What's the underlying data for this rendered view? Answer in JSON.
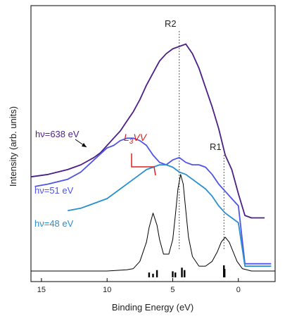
{
  "chart_data": {
    "type": "line",
    "title": "",
    "xlabel": "Binding Energy (eV)",
    "ylabel": "Intensity (arb. units)",
    "x_reversed": true,
    "xlim": [
      15.8,
      -2.8
    ],
    "ylim": [
      0,
      1
    ],
    "xticks": [
      15,
      10,
      5,
      0
    ],
    "yticks_shown": false,
    "grid": false,
    "series": [
      {
        "name": "hν=638 eV",
        "color": "#4b1f86",
        "x": [
          15.8,
          14.5,
          13.0,
          12.0,
          11.0,
          10.5,
          10.0,
          9.5,
          9.0,
          8.5,
          8.0,
          7.5,
          7.0,
          6.5,
          6.0,
          5.5,
          5.0,
          4.5,
          4.0,
          3.5,
          3.0,
          2.5,
          2.0,
          1.5,
          1.0,
          0.5,
          0.0,
          -0.5,
          -1.0,
          -1.5,
          -2.0
        ],
        "y": [
          0.39,
          0.4,
          0.42,
          0.44,
          0.47,
          0.49,
          0.52,
          0.55,
          0.58,
          0.62,
          0.66,
          0.71,
          0.77,
          0.82,
          0.87,
          0.9,
          0.92,
          0.93,
          0.94,
          0.9,
          0.84,
          0.76,
          0.68,
          0.59,
          0.48,
          0.42,
          0.32,
          0.23,
          0.22,
          0.22,
          0.22
        ]
      },
      {
        "name": "hν=51 eV",
        "color": "#4f55e6",
        "x": [
          15.5,
          14.5,
          13.0,
          12.0,
          11.0,
          10.0,
          9.5,
          9.0,
          8.5,
          8.0,
          7.5,
          7.0,
          6.5,
          6.0,
          5.5,
          5.0,
          4.5,
          4.0,
          3.5,
          3.0,
          2.5,
          2.0,
          1.5,
          1.0,
          0.5,
          0.0,
          -0.5,
          -1.0,
          -1.5,
          -2.0,
          -2.5
        ],
        "y": [
          0.35,
          0.36,
          0.38,
          0.41,
          0.46,
          0.51,
          0.52,
          0.54,
          0.55,
          0.55,
          0.54,
          0.52,
          0.48,
          0.45,
          0.44,
          0.46,
          0.47,
          0.45,
          0.44,
          0.44,
          0.43,
          0.4,
          0.36,
          0.33,
          0.3,
          0.27,
          0.03,
          0.03,
          0.03,
          0.03,
          0.03
        ]
      },
      {
        "name": "hν=48 eV",
        "color": "#2a8fd0",
        "x": [
          13.0,
          12.0,
          11.0,
          10.0,
          9.0,
          8.0,
          7.5,
          7.0,
          6.5,
          6.0,
          5.5,
          5.0,
          4.5,
          4.0,
          3.5,
          3.0,
          2.5,
          2.0,
          1.5,
          1.0,
          0.5,
          0.0,
          -0.5,
          -1.0,
          -1.5,
          -2.0,
          -2.5
        ],
        "y": [
          0.25,
          0.26,
          0.28,
          0.3,
          0.34,
          0.38,
          0.4,
          0.42,
          0.43,
          0.44,
          0.44,
          0.43,
          0.41,
          0.4,
          0.38,
          0.36,
          0.34,
          0.31,
          0.27,
          0.24,
          0.22,
          0.2,
          0.02,
          0.02,
          0.02,
          0.02,
          0.02
        ]
      },
      {
        "name": "",
        "color": "#000000",
        "x": [
          15.8,
          13.0,
          10.0,
          8.5,
          8.0,
          7.5,
          7.0,
          6.8,
          6.5,
          6.2,
          6.0,
          5.7,
          5.3,
          5.0,
          4.8,
          4.6,
          4.4,
          4.2,
          4.0,
          3.8,
          3.5,
          3.0,
          2.5,
          2.0,
          1.6,
          1.3,
          1.0,
          0.7,
          0.4,
          0.1,
          -0.3,
          -1.0,
          -2.8
        ],
        "y": [
          0.0,
          0.0,
          0.0,
          0.005,
          0.01,
          0.04,
          0.12,
          0.18,
          0.24,
          0.19,
          0.13,
          0.07,
          0.07,
          0.13,
          0.23,
          0.34,
          0.4,
          0.36,
          0.25,
          0.14,
          0.06,
          0.02,
          0.02,
          0.04,
          0.08,
          0.12,
          0.14,
          0.12,
          0.08,
          0.04,
          0.01,
          0.0,
          0.0
        ]
      }
    ],
    "sticks": {
      "color": "#000000",
      "x": [
        6.8,
        6.5,
        6.2,
        5.0,
        4.8,
        4.3,
        4.1,
        1.1,
        1.05
      ],
      "height": [
        0.02,
        0.015,
        0.03,
        0.025,
        0.02,
        0.04,
        0.03,
        0.05,
        0.035
      ]
    },
    "reference_lines": [
      {
        "label": "R2",
        "x": 4.5
      },
      {
        "label": "R1",
        "x": 1.1
      }
    ],
    "annotations": {
      "l3vv_label": "L3VV",
      "l3vv_color": "#e0201e"
    }
  }
}
